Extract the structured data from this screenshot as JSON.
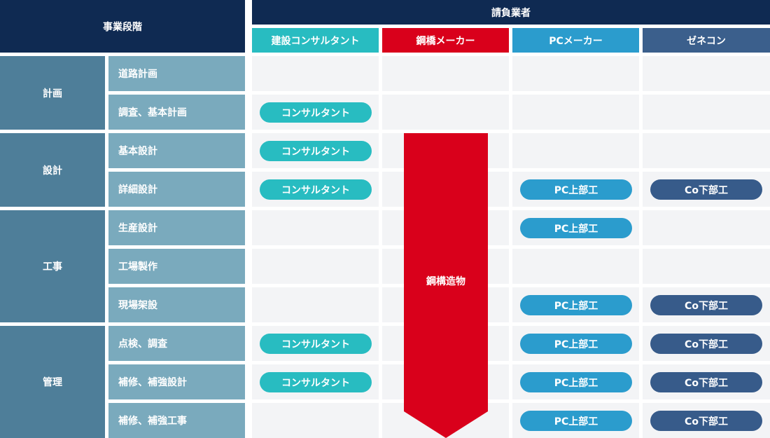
{
  "header": {
    "stage_title": "事業段階",
    "contractor_title": "請負業者"
  },
  "columns": [
    {
      "label": "建設コンサルタント",
      "color": "#28bcc1"
    },
    {
      "label": "鋼橋メーカー",
      "color": "#d9001b"
    },
    {
      "label": "PCメーカー",
      "color": "#2b9ccd"
    },
    {
      "label": "ゼネコン",
      "color": "#3b5f8c"
    }
  ],
  "groups": [
    {
      "label": "計画",
      "steps": [
        "道路計画",
        "調査、基本計画"
      ]
    },
    {
      "label": "設計",
      "steps": [
        "基本設計",
        "詳細設計"
      ]
    },
    {
      "label": "工事",
      "steps": [
        "生産設計",
        "工場製作",
        "現場架設"
      ]
    },
    {
      "label": "管理",
      "steps": [
        "点検、調査",
        "補修、補強設計",
        "補修、補強工事"
      ]
    }
  ],
  "pills": {
    "consultant": "コンサルタント",
    "pc_upper": "PC上部工",
    "co_lower": "Co下部工"
  },
  "steel_arrow": {
    "label": "鋼構造物",
    "color": "#d9001b",
    "from_step": "基本設計",
    "to_step": "補修、補強工事"
  },
  "assignments": {
    "consultant": [
      "調査、基本計画",
      "基本設計",
      "詳細設計",
      "点検、調査",
      "補修、補強設計"
    ],
    "pc_upper": [
      "詳細設計",
      "生産設計",
      "現場架設",
      "点検、調査",
      "補修、補強設計",
      "補修、補強工事"
    ],
    "co_lower": [
      "詳細設計",
      "現場架設",
      "点検、調査",
      "補修、補強設計",
      "補修、補強工事"
    ]
  }
}
